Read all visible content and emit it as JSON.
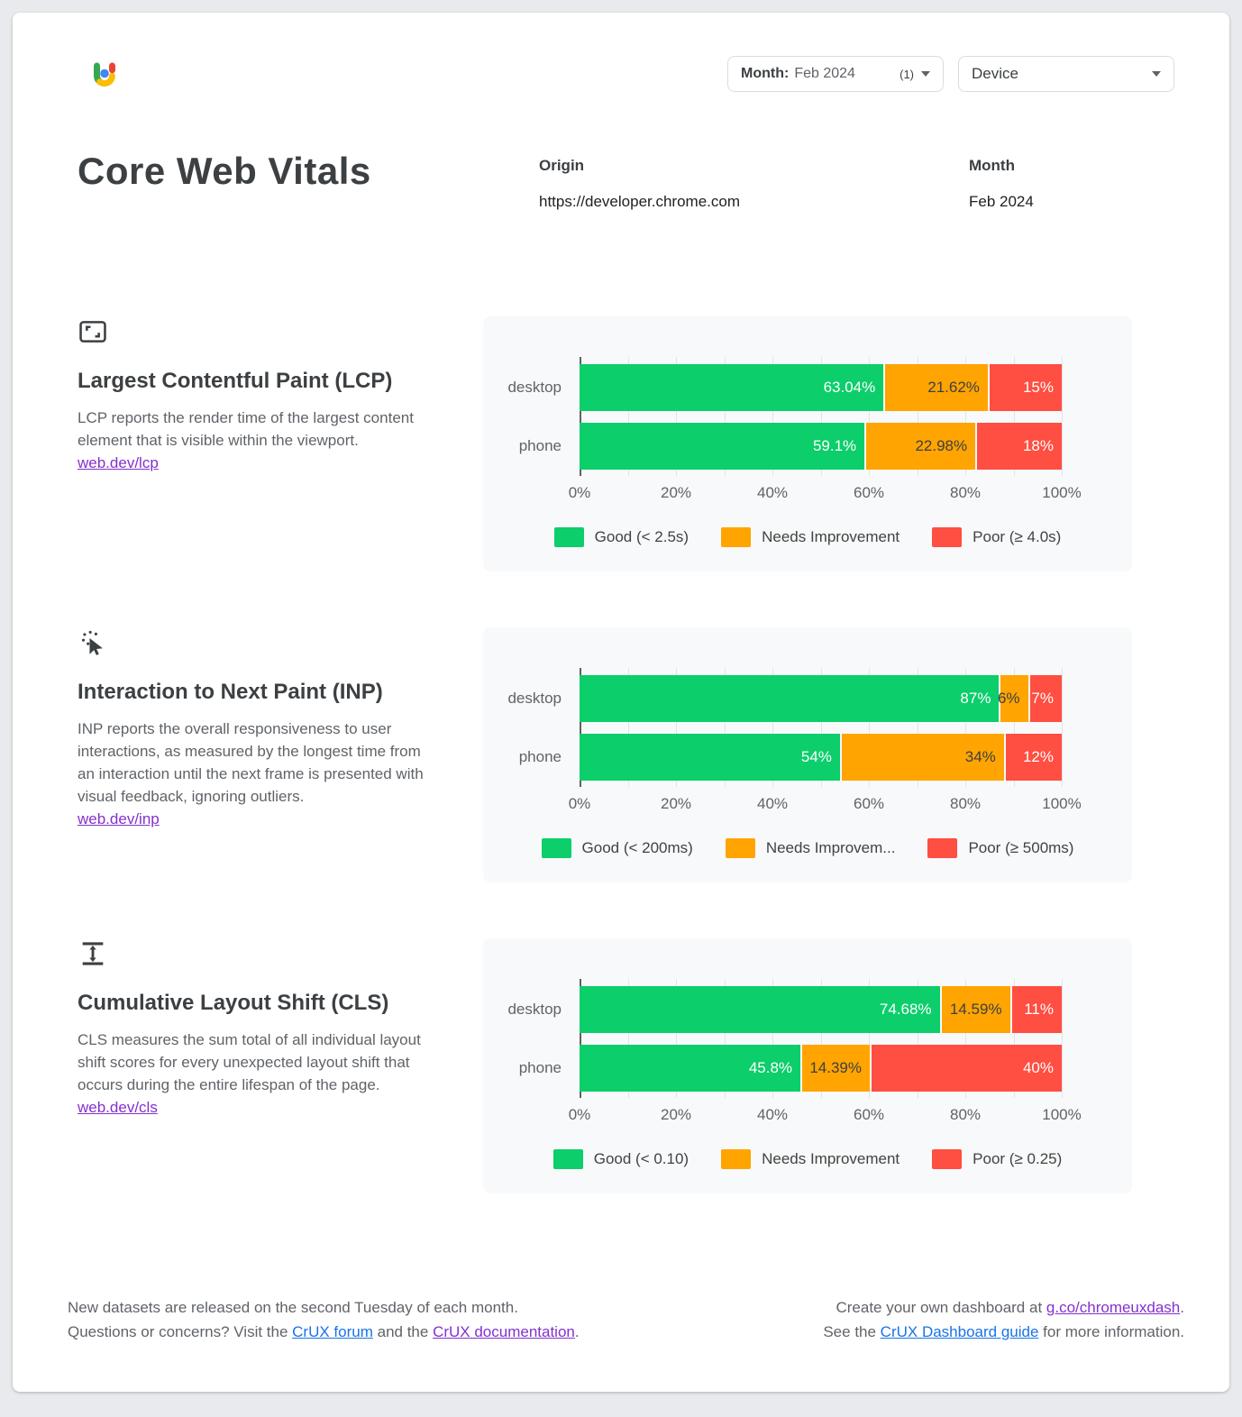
{
  "header": {
    "month_filter": {
      "label": "Month:",
      "value": "Feb 2024",
      "count": "(1)"
    },
    "device_filter": {
      "label": "Device"
    }
  },
  "page_title": "Core Web Vitals",
  "meta": {
    "origin_label": "Origin",
    "origin_value": "https://developer.chrome.com",
    "month_label": "Month",
    "month_value": "Feb 2024"
  },
  "sections": [
    {
      "title": "Largest Contentful Paint (LCP)",
      "description": "LCP reports the render time of the largest content element that is visible within the viewport.",
      "link": "web.dev/lcp"
    },
    {
      "title": "Interaction to Next Paint (INP)",
      "description": "INP reports the overall responsiveness to user interactions, as measured by the longest time from an interaction until the next frame is presented with visual feedback, ignoring outliers.",
      "link": "web.dev/inp"
    },
    {
      "title": "Cumulative Layout Shift (CLS)",
      "description": "CLS measures the sum total of all individual layout shift scores for every unexpected layout shift that occurs during the entire lifespan of the page.",
      "link": "web.dev/cls"
    }
  ],
  "chart_data": [
    {
      "type": "bar",
      "metric": "LCP",
      "orientation": "horizontal",
      "stacked": true,
      "categories": [
        "desktop",
        "phone"
      ],
      "series": [
        {
          "key": "good",
          "name": "Good (< 2.5s)",
          "color": "#0cce6b",
          "label_color": "#ffffff",
          "values": [
            63.04,
            59.1
          ],
          "labels": [
            "63.04%",
            "59.1%"
          ]
        },
        {
          "key": "needs-improvement",
          "name": "Needs Improvement",
          "color": "#ffa400",
          "label_color": "#3c4043",
          "values": [
            21.62,
            22.98
          ],
          "labels": [
            "21.62%",
            "22.98%"
          ]
        },
        {
          "key": "poor",
          "name": "Poor (≥ 4.0s)",
          "color": "#ff4e42",
          "label_color": "#ffffff",
          "values": [
            15.34,
            17.92
          ],
          "labels": [
            "15%",
            "18%"
          ]
        }
      ],
      "x_ticks": [
        "0%",
        "20%",
        "40%",
        "60%",
        "80%",
        "100%"
      ],
      "xlim": [
        0,
        100
      ],
      "grid": true,
      "legend_position": "bottom"
    },
    {
      "type": "bar",
      "metric": "INP",
      "orientation": "horizontal",
      "stacked": true,
      "categories": [
        "desktop",
        "phone"
      ],
      "series": [
        {
          "key": "good",
          "name": "Good (< 200ms)",
          "color": "#0cce6b",
          "label_color": "#ffffff",
          "values": [
            87,
            54
          ],
          "labels": [
            "87%",
            "54%"
          ]
        },
        {
          "key": "needs-improvement",
          "name": "Needs Improvem...",
          "color": "#ffa400",
          "label_color": "#3c4043",
          "values": [
            6,
            34
          ],
          "labels": [
            "6%",
            "34%"
          ]
        },
        {
          "key": "poor",
          "name": "Poor (≥ 500ms)",
          "color": "#ff4e42",
          "label_color": "#ffffff",
          "values": [
            7,
            12
          ],
          "labels": [
            "7%",
            "12%"
          ]
        }
      ],
      "x_ticks": [
        "0%",
        "20%",
        "40%",
        "60%",
        "80%",
        "100%"
      ],
      "xlim": [
        0,
        100
      ],
      "grid": true,
      "legend_position": "bottom"
    },
    {
      "type": "bar",
      "metric": "CLS",
      "orientation": "horizontal",
      "stacked": true,
      "categories": [
        "desktop",
        "phone"
      ],
      "series": [
        {
          "key": "good",
          "name": "Good (< 0.10)",
          "color": "#0cce6b",
          "label_color": "#ffffff",
          "values": [
            74.68,
            45.8
          ],
          "labels": [
            "74.68%",
            "45.8%"
          ]
        },
        {
          "key": "needs-improvement",
          "name": "Needs Improvement",
          "color": "#ffa400",
          "label_color": "#3c4043",
          "values": [
            14.59,
            14.39
          ],
          "labels": [
            "14.59%",
            "14.39%"
          ]
        },
        {
          "key": "poor",
          "name": "Poor (≥ 0.25)",
          "color": "#ff4e42",
          "label_color": "#ffffff",
          "values": [
            10.73,
            39.81
          ],
          "labels": [
            "11%",
            "40%"
          ]
        }
      ],
      "x_ticks": [
        "0%",
        "20%",
        "40%",
        "60%",
        "80%",
        "100%"
      ],
      "xlim": [
        0,
        100
      ],
      "grid": true,
      "legend_position": "bottom"
    }
  ],
  "footer": {
    "left_line1": "New datasets are released on the second Tuesday of each month.",
    "left_line2_prefix": "Questions or concerns? Visit the ",
    "left_line2_link1": "CrUX forum",
    "left_line2_middle": " and the ",
    "left_line2_link2": "CrUX documentation",
    "left_line2_suffix": ".",
    "right_line1_prefix": "Create your own dashboard at ",
    "right_line1_link": "g.co/chromeuxdash",
    "right_line1_suffix": ".",
    "right_line2_prefix": "See the ",
    "right_line2_link": "CrUX Dashboard guide",
    "right_line2_suffix": " for more information."
  }
}
